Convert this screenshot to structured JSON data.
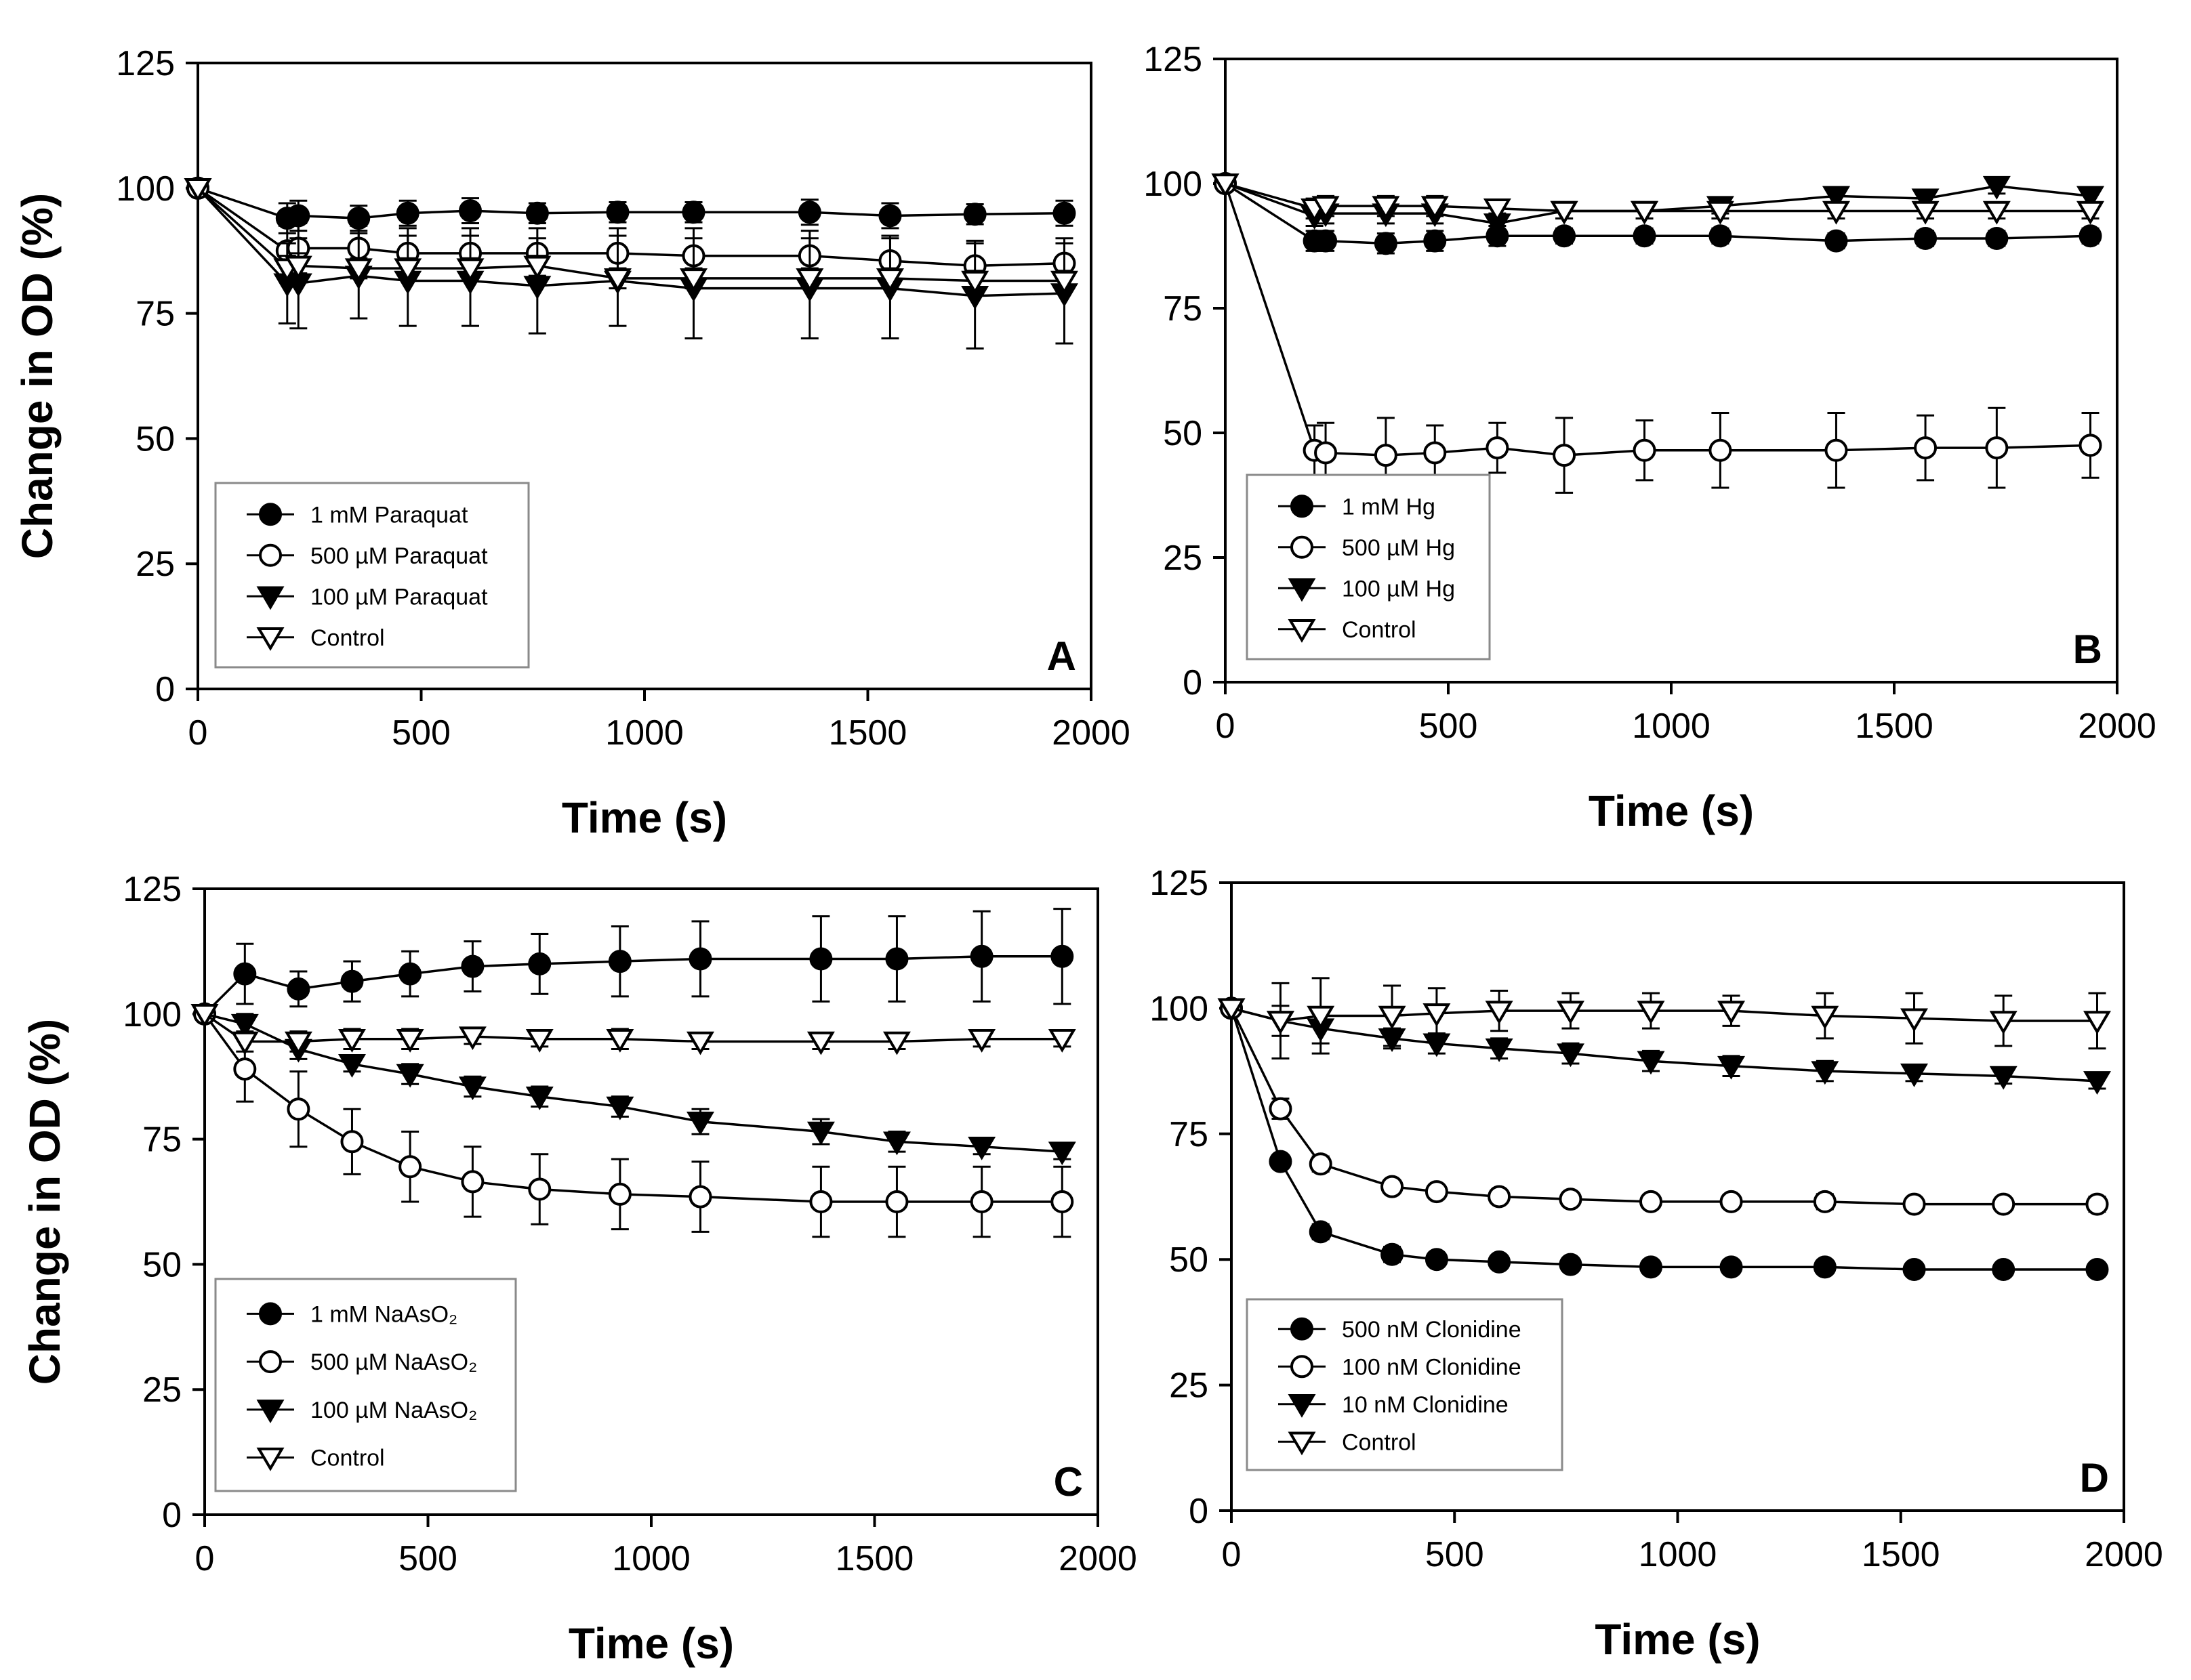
{
  "colors": {
    "ink": "#000000",
    "fill_open": "#ffffff",
    "legend_border": "#8a8a8a"
  },
  "chart_data": [
    {
      "id": "A",
      "type": "line",
      "panel_label": "A",
      "xlabel": "Time (s)",
      "ylabel": "Change in OD (%)",
      "xlim": [
        0,
        2000
      ],
      "ylim": [
        0,
        125
      ],
      "xticks": [
        "0",
        "500",
        "1000",
        "1500",
        "2000"
      ],
      "yticks": [
        "0",
        "25",
        "50",
        "75",
        "100",
        "125"
      ],
      "grid": false,
      "legend_position": "lower-left",
      "series": [
        {
          "name": "1 mM Paraquat",
          "marker": "filled-circle",
          "x": [
            0,
            200,
            225,
            360,
            470,
            610,
            760,
            940,
            1110,
            1370,
            1550,
            1740,
            1940
          ],
          "y": [
            100,
            94,
            94.5,
            94,
            95,
            95.5,
            95,
            95.2,
            95.2,
            95.2,
            94.5,
            94.8,
            95
          ],
          "err": [
            0,
            3,
            3,
            2.5,
            2.5,
            2.5,
            2,
            2,
            2,
            2.5,
            2.5,
            2,
            2.5
          ]
        },
        {
          "name": "500 µM Paraquat",
          "marker": "open-circle",
          "x": [
            0,
            200,
            225,
            360,
            470,
            610,
            760,
            940,
            1110,
            1370,
            1550,
            1740,
            1940
          ],
          "y": [
            100,
            87.5,
            88,
            88,
            87,
            87,
            87,
            87,
            86.5,
            86.5,
            85.5,
            84.5,
            85
          ],
          "err": [
            0,
            5,
            5,
            4.5,
            5,
            5,
            5,
            5,
            5.5,
            5,
            5,
            5,
            5
          ]
        },
        {
          "name": "100 µM Paraquat",
          "marker": "filled-triangle",
          "x": [
            0,
            200,
            225,
            360,
            470,
            610,
            760,
            940,
            1110,
            1370,
            1550,
            1740,
            1940
          ],
          "y": [
            100,
            81,
            81,
            82.5,
            81.5,
            81.5,
            80.5,
            81.5,
            80,
            80,
            80,
            78.5,
            79
          ],
          "err": [
            0,
            8,
            9,
            8.5,
            9,
            9,
            9.5,
            9,
            10,
            10,
            10,
            10.5,
            10
          ]
        },
        {
          "name": "Control",
          "marker": "open-triangle",
          "x": [
            0,
            200,
            225,
            360,
            470,
            610,
            760,
            940,
            1110,
            1370,
            1550,
            1740,
            1940
          ],
          "y": [
            100,
            84,
            84.5,
            84,
            84,
            84,
            84.5,
            82,
            82,
            82,
            82,
            81.5,
            81.5
          ],
          "err": [
            0,
            2.5,
            2.5,
            2,
            2,
            2,
            2,
            2,
            2,
            2,
            2,
            2,
            2
          ]
        }
      ]
    },
    {
      "id": "B",
      "type": "line",
      "panel_label": "B",
      "xlabel": "Time (s)",
      "ylabel": "",
      "xlim": [
        0,
        2000
      ],
      "ylim": [
        0,
        125
      ],
      "xticks": [
        "0",
        "500",
        "1000",
        "1500",
        "2000"
      ],
      "yticks": [
        "0",
        "25",
        "50",
        "75",
        "100",
        "125"
      ],
      "grid": false,
      "legend_position": "lower-left",
      "series": [
        {
          "name": "1 mM Hg",
          "marker": "filled-circle",
          "x": [
            0,
            200,
            225,
            360,
            470,
            610,
            760,
            940,
            1110,
            1370,
            1570,
            1730,
            1940
          ],
          "y": [
            100,
            88.5,
            88.5,
            88,
            88.5,
            89.5,
            89.5,
            89.5,
            89.5,
            88.5,
            89,
            89,
            89.5
          ],
          "err": [
            0,
            2,
            2,
            2,
            2,
            2,
            1.5,
            1.5,
            1.5,
            1.5,
            1.5,
            1.5,
            1.5
          ]
        },
        {
          "name": "500 µM Hg",
          "marker": "open-circle",
          "x": [
            0,
            200,
            225,
            360,
            470,
            610,
            760,
            940,
            1110,
            1370,
            1570,
            1730,
            1940
          ],
          "y": [
            100,
            46.5,
            46,
            45.5,
            46,
            47,
            45.5,
            46.5,
            46.5,
            46.5,
            47,
            47,
            47.5
          ],
          "err": [
            0,
            5,
            6,
            7.5,
            5.5,
            5,
            7.5,
            6,
            7.5,
            7.5,
            6.5,
            8,
            6.5
          ]
        },
        {
          "name": "100 µM Hg",
          "marker": "filled-triangle",
          "x": [
            0,
            200,
            225,
            360,
            470,
            610,
            760,
            940,
            1110,
            1370,
            1570,
            1730,
            1940
          ],
          "y": [
            100,
            93.5,
            94,
            94,
            94,
            92,
            94.5,
            94.5,
            95.5,
            97.5,
            97,
            99.5,
            97.5
          ],
          "err": [
            0,
            2,
            2,
            2,
            2,
            2,
            1.5,
            1.5,
            1.5,
            1.5,
            1.5,
            1.5,
            1.5
          ]
        },
        {
          "name": "Control",
          "marker": "open-triangle",
          "x": [
            0,
            200,
            225,
            360,
            470,
            610,
            760,
            940,
            1110,
            1370,
            1570,
            1730,
            1940
          ],
          "y": [
            100,
            95,
            95.5,
            95.5,
            95.5,
            95,
            94.5,
            94.5,
            94.5,
            94.5,
            94.5,
            94.5,
            94.5
          ],
          "err": [
            0,
            2,
            2,
            2,
            2,
            1.5,
            1.5,
            1.5,
            1.5,
            1.5,
            1.5,
            1.5,
            1.5
          ]
        }
      ]
    },
    {
      "id": "C",
      "type": "line",
      "panel_label": "C",
      "xlabel": "Time (s)",
      "ylabel": "Change in OD (%)",
      "xlim": [
        0,
        2000
      ],
      "ylim": [
        0,
        125
      ],
      "xticks": [
        "0",
        "500",
        "1000",
        "1500",
        "2000"
      ],
      "yticks": [
        "0",
        "25",
        "50",
        "75",
        "100",
        "125"
      ],
      "grid": false,
      "legend_position": "lower-left",
      "series": [
        {
          "name": "1 mM NaAsO₂",
          "marker": "filled-circle",
          "x": [
            0,
            90,
            210,
            330,
            460,
            600,
            750,
            930,
            1110,
            1380,
            1550,
            1740,
            1920
          ],
          "y": [
            100,
            108,
            105,
            106.5,
            108,
            109.5,
            110,
            110.5,
            111,
            111,
            111,
            111.5,
            111.5
          ],
          "err": [
            0,
            6,
            3.5,
            4,
            4.5,
            5,
            6,
            7,
            7.5,
            8.5,
            8.5,
            9,
            9.5
          ]
        },
        {
          "name": "500 µM NaAsO₂",
          "marker": "open-circle",
          "x": [
            0,
            90,
            210,
            330,
            460,
            600,
            750,
            930,
            1110,
            1380,
            1550,
            1740,
            1920
          ],
          "y": [
            100,
            89,
            81,
            74.5,
            69.5,
            66.5,
            65,
            64,
            63.5,
            62.5,
            62.5,
            62.5,
            62.5
          ],
          "err": [
            0,
            6.5,
            7.5,
            6.5,
            7,
            7,
            7,
            7,
            7,
            7,
            7,
            7,
            7
          ]
        },
        {
          "name": "100 µM NaAsO₂",
          "marker": "filled-triangle",
          "x": [
            0,
            90,
            210,
            330,
            460,
            600,
            750,
            930,
            1110,
            1380,
            1550,
            1740,
            1920
          ],
          "y": [
            100,
            98,
            93,
            90,
            88,
            85.5,
            83.5,
            81.5,
            78.5,
            76.5,
            74.5,
            73.5,
            72.5
          ],
          "err": [
            0,
            2,
            2,
            1.5,
            2,
            2,
            2,
            2,
            2.5,
            2.5,
            2,
            1.5,
            1.5
          ]
        },
        {
          "name": "Control",
          "marker": "open-triangle",
          "x": [
            0,
            90,
            210,
            330,
            460,
            600,
            750,
            930,
            1110,
            1380,
            1550,
            1740,
            1920
          ],
          "y": [
            100,
            94.5,
            94.5,
            95,
            95,
            95.5,
            95,
            95,
            94.5,
            94.5,
            94.5,
            95,
            95
          ],
          "err": [
            0,
            2,
            2,
            2,
            2,
            1.5,
            1.5,
            2,
            1.5,
            1.5,
            1.5,
            1.5,
            1.5
          ]
        }
      ]
    },
    {
      "id": "D",
      "type": "line",
      "panel_label": "D",
      "xlabel": "Time (s)",
      "ylabel": "",
      "xlim": [
        0,
        2000
      ],
      "ylim": [
        0,
        125
      ],
      "xticks": [
        "0",
        "500",
        "1000",
        "1500",
        "2000"
      ],
      "yticks": [
        "0",
        "25",
        "50",
        "75",
        "100",
        "125"
      ],
      "grid": false,
      "legend_position": "lower-left",
      "series": [
        {
          "name": "500 nM Clonidine",
          "marker": "filled-circle",
          "x": [
            0,
            110,
            200,
            360,
            460,
            600,
            760,
            940,
            1120,
            1330,
            1530,
            1730,
            1940
          ],
          "y": [
            100,
            69.5,
            55.5,
            51,
            50,
            49.5,
            49,
            48.5,
            48.5,
            48.5,
            48,
            48,
            48
          ],
          "err": [
            0,
            1,
            1.5,
            1.5,
            1,
            1,
            1,
            1,
            1,
            1,
            1,
            1,
            1
          ]
        },
        {
          "name": "100 nM Clonidine",
          "marker": "open-circle",
          "x": [
            0,
            110,
            200,
            360,
            460,
            600,
            760,
            940,
            1120,
            1330,
            1530,
            1730,
            1940
          ],
          "y": [
            100,
            80,
            69,
            64.5,
            63.5,
            62.5,
            62,
            61.5,
            61.5,
            61.5,
            61,
            61,
            61
          ],
          "err": [
            0,
            2,
            1.5,
            1,
            1,
            1,
            1,
            1,
            1,
            1.5,
            1,
            1,
            1.5
          ]
        },
        {
          "name": "10 nM Clonidine",
          "marker": "filled-triangle",
          "x": [
            0,
            110,
            200,
            360,
            460,
            600,
            760,
            940,
            1120,
            1330,
            1530,
            1730,
            1940
          ],
          "y": [
            100,
            97.5,
            96,
            94,
            93,
            92,
            91,
            89.5,
            88.5,
            87.5,
            87,
            86.5,
            85.5
          ],
          "err": [
            0,
            3,
            3,
            2,
            2,
            2,
            2,
            2,
            2,
            2,
            1.5,
            1.5,
            1.5
          ]
        },
        {
          "name": "Control",
          "marker": "open-triangle",
          "x": [
            0,
            110,
            200,
            360,
            460,
            600,
            760,
            940,
            1120,
            1330,
            1530,
            1730,
            1940
          ],
          "y": [
            100,
            97.5,
            98.5,
            98.5,
            99,
            99.5,
            99.5,
            99.5,
            99.5,
            98.5,
            98,
            97.5,
            97.5
          ],
          "err": [
            0,
            7.5,
            7.5,
            6,
            5,
            4,
            3.5,
            3.5,
            3,
            4.5,
            5,
            5,
            5.5
          ]
        }
      ]
    }
  ]
}
